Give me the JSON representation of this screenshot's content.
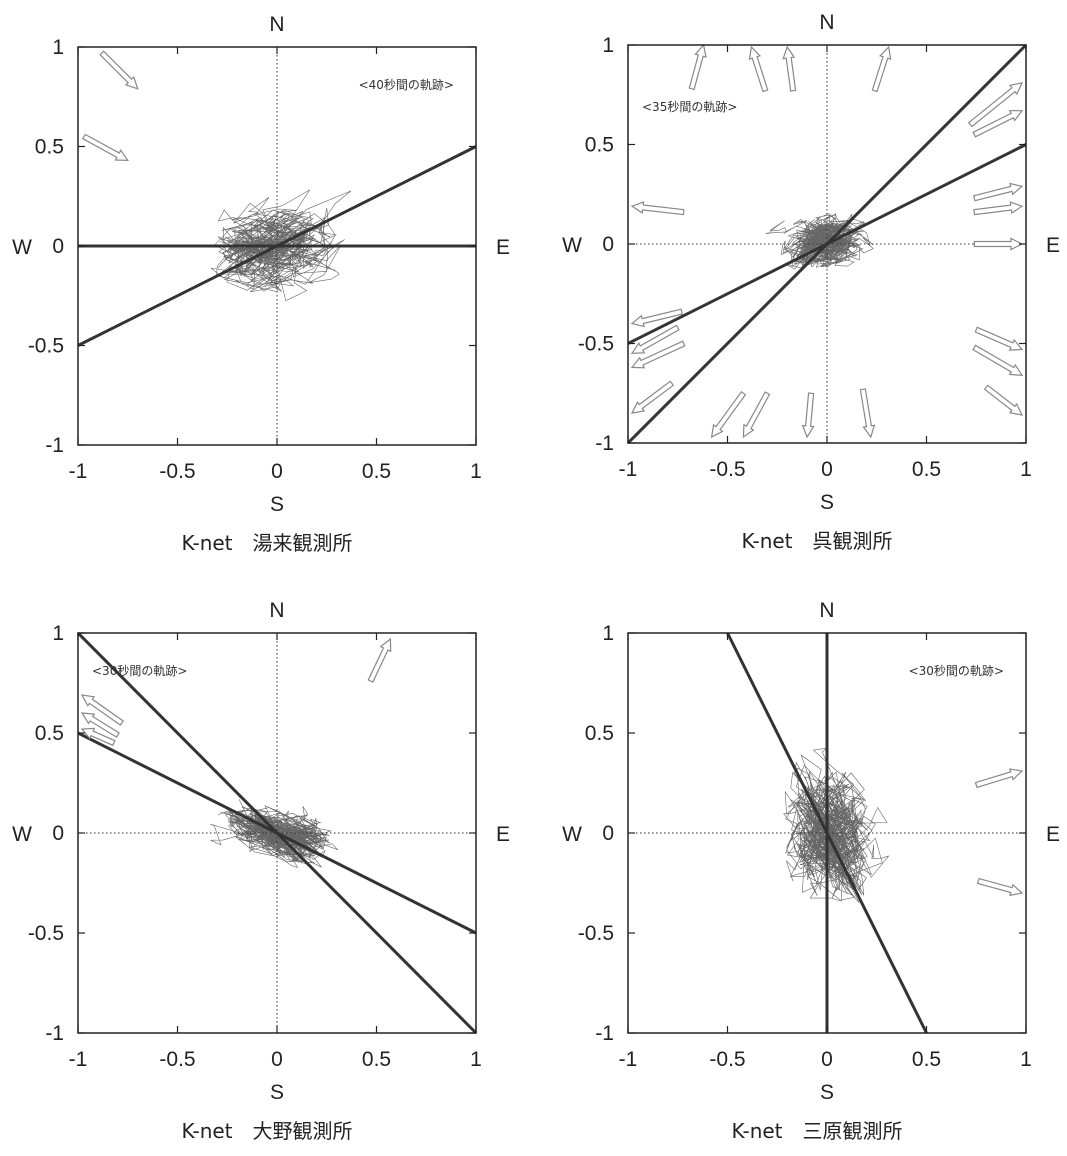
{
  "chart_data": [
    {
      "type": "scatter",
      "caption": "K-net　湯来観測所",
      "annotation": "<40秒間の軌跡>",
      "directions": {
        "north": "N",
        "south": "S",
        "west": "W",
        "east": "E"
      },
      "xlim": [
        -1,
        1
      ],
      "ylim": [
        -1,
        1
      ],
      "xticks": [
        "-1",
        "-0.5",
        "0",
        "0.5",
        "1"
      ],
      "yticks": [
        "-1",
        "-0.5",
        "0",
        "0.5",
        "1"
      ],
      "trajectory": {
        "spread_x": 0.16,
        "spread_y": 0.11,
        "corr": 0.25,
        "points": 700,
        "extent": 0.45
      },
      "axes_lines": [
        {
          "from": [
            -1,
            0
          ],
          "to": [
            1,
            0
          ]
        },
        {
          "from": [
            -1,
            -0.5
          ],
          "to": [
            1,
            0.5
          ]
        }
      ],
      "arrows": [
        {
          "from": [
            -0.88,
            0.97
          ],
          "to": [
            -0.7,
            0.79
          ]
        },
        {
          "from": [
            -0.97,
            0.55
          ],
          "to": [
            -0.75,
            0.43
          ]
        }
      ]
    },
    {
      "type": "scatter",
      "caption": "K-net　呉観測所",
      "annotation": "<35秒間の軌跡>",
      "directions": {
        "north": "N",
        "south": "S",
        "west": "W",
        "east": "E"
      },
      "xlim": [
        -1,
        1
      ],
      "ylim": [
        -1,
        1
      ],
      "xticks": [
        "-1",
        "-0.5",
        "0",
        "0.5",
        "1"
      ],
      "yticks": [
        "-1",
        "-0.5",
        "0",
        "0.5",
        "1"
      ],
      "trajectory": {
        "spread_x": 0.11,
        "spread_y": 0.07,
        "corr": 0.25,
        "points": 800,
        "extent": 0.42
      },
      "axes_lines": [
        {
          "from": [
            -1,
            -1
          ],
          "to": [
            1,
            1
          ]
        },
        {
          "from": [
            -1,
            -0.5
          ],
          "to": [
            1,
            0.5
          ]
        }
      ],
      "arrows": [
        {
          "from": [
            -0.68,
            0.78
          ],
          "to": [
            -0.62,
            1.0
          ]
        },
        {
          "from": [
            -0.31,
            0.77
          ],
          "to": [
            -0.38,
            0.99
          ]
        },
        {
          "from": [
            -0.17,
            0.77
          ],
          "to": [
            -0.2,
            0.99
          ]
        },
        {
          "from": [
            0.24,
            0.77
          ],
          "to": [
            0.31,
            0.99
          ]
        },
        {
          "from": [
            0.72,
            0.6
          ],
          "to": [
            0.98,
            0.81
          ]
        },
        {
          "from": [
            0.74,
            0.55
          ],
          "to": [
            0.98,
            0.67
          ]
        },
        {
          "from": [
            0.74,
            0.23
          ],
          "to": [
            0.98,
            0.29
          ]
        },
        {
          "from": [
            0.74,
            0.16
          ],
          "to": [
            0.98,
            0.19
          ]
        },
        {
          "from": [
            0.74,
            0.0
          ],
          "to": [
            0.98,
            0.0
          ]
        },
        {
          "from": [
            -0.72,
            0.16
          ],
          "to": [
            -0.98,
            0.19
          ]
        },
        {
          "from": [
            -0.73,
            -0.34
          ],
          "to": [
            -0.98,
            -0.4
          ]
        },
        {
          "from": [
            -0.75,
            -0.42
          ],
          "to": [
            -0.98,
            -0.55
          ]
        },
        {
          "from": [
            -0.72,
            -0.5
          ],
          "to": [
            -0.98,
            -0.62
          ]
        },
        {
          "from": [
            -0.78,
            -0.7
          ],
          "to": [
            -0.98,
            -0.85
          ]
        },
        {
          "from": [
            -0.42,
            -0.75
          ],
          "to": [
            -0.58,
            -0.97
          ]
        },
        {
          "from": [
            -0.3,
            -0.75
          ],
          "to": [
            -0.42,
            -0.97
          ]
        },
        {
          "from": [
            -0.08,
            -0.75
          ],
          "to": [
            -0.1,
            -0.97
          ]
        },
        {
          "from": [
            0.18,
            -0.73
          ],
          "to": [
            0.22,
            -0.97
          ]
        },
        {
          "from": [
            0.75,
            -0.43
          ],
          "to": [
            0.98,
            -0.53
          ]
        },
        {
          "from": [
            0.74,
            -0.52
          ],
          "to": [
            0.98,
            -0.66
          ]
        },
        {
          "from": [
            0.8,
            -0.72
          ],
          "to": [
            0.98,
            -0.86
          ]
        }
      ]
    },
    {
      "type": "scatter",
      "caption": "K-net　大野観測所",
      "annotation": "<30秒間の軌跡>",
      "directions": {
        "north": "N",
        "south": "S",
        "west": "W",
        "east": "E"
      },
      "xlim": [
        -1,
        1
      ],
      "ylim": [
        -1,
        1
      ],
      "xticks": [
        "-1",
        "-0.5",
        "0",
        "0.5",
        "1"
      ],
      "yticks": [
        "-1",
        "-0.5",
        "0",
        "0.5",
        "1"
      ],
      "trajectory": {
        "spread_x": 0.14,
        "spread_y": 0.07,
        "corr": -0.55,
        "points": 800,
        "extent": 0.4
      },
      "axes_lines": [
        {
          "from": [
            -1,
            1
          ],
          "to": [
            1,
            -1
          ]
        },
        {
          "from": [
            -1,
            0.5
          ],
          "to": [
            1,
            -0.5
          ]
        }
      ],
      "arrows": [
        {
          "from": [
            0.47,
            0.76
          ],
          "to": [
            0.57,
            0.97
          ]
        },
        {
          "from": [
            -0.78,
            0.55
          ],
          "to": [
            -0.98,
            0.69
          ]
        },
        {
          "from": [
            -0.8,
            0.49
          ],
          "to": [
            -0.98,
            0.6
          ]
        },
        {
          "from": [
            -0.82,
            0.45
          ],
          "to": [
            -0.98,
            0.52
          ]
        }
      ]
    },
    {
      "type": "scatter",
      "caption": "K-net　三原観測所",
      "annotation": "<30秒間の軌跡>",
      "directions": {
        "north": "N",
        "south": "S",
        "west": "W",
        "east": "E"
      },
      "xlim": [
        -1,
        1
      ],
      "ylim": [
        -1,
        1
      ],
      "xticks": [
        "-1",
        "-0.5",
        "0",
        "0.5",
        "1"
      ],
      "yticks": [
        "-1",
        "-0.5",
        "0",
        "0.5",
        "1"
      ],
      "trajectory": {
        "spread_x": 0.12,
        "spread_y": 0.16,
        "corr": -0.15,
        "points": 900,
        "extent": 0.55
      },
      "axes_lines": [
        {
          "from": [
            0,
            -1
          ],
          "to": [
            0,
            1
          ]
        },
        {
          "from": [
            -0.5,
            1
          ],
          "to": [
            0.5,
            -1
          ]
        }
      ],
      "arrows": [
        {
          "from": [
            0.75,
            0.24
          ],
          "to": [
            0.98,
            0.31
          ]
        },
        {
          "from": [
            0.76,
            -0.24
          ],
          "to": [
            0.98,
            -0.3
          ]
        }
      ]
    }
  ]
}
